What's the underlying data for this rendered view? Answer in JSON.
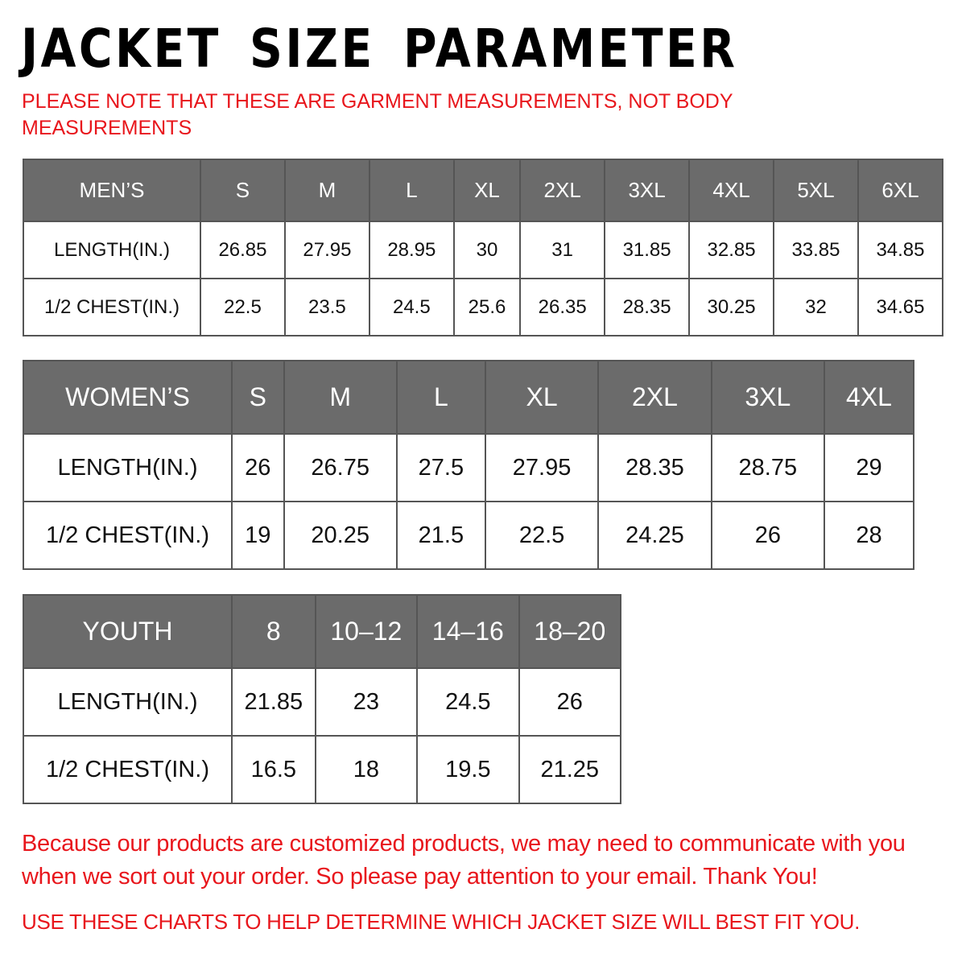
{
  "title": "JACKET SIZE PARAMETER",
  "note": "PLEASE NOTE THAT THESE ARE GARMENT MEASUREMENTS, NOT BODY MEASUREMENTS",
  "tables": [
    {
      "id": "men",
      "header": [
        "MEN’S",
        "S",
        "M",
        "L",
        "XL",
        "2XL",
        "3XL",
        "4XL",
        "5XL",
        "6XL"
      ],
      "rows": [
        [
          "LENGTH(IN.)",
          "26.85",
          "27.95",
          "28.95",
          "30",
          "31",
          "31.85",
          "32.85",
          "33.85",
          "34.85"
        ],
        [
          "1/2 CHEST(IN.)",
          "22.5",
          "23.5",
          "24.5",
          "25.6",
          "26.35",
          "28.35",
          "30.25",
          "32",
          "34.65"
        ]
      ]
    },
    {
      "id": "women",
      "header": [
        "WOMEN’S",
        "S",
        "M",
        "L",
        "XL",
        "2XL",
        "3XL",
        "4XL"
      ],
      "rows": [
        [
          "LENGTH(IN.)",
          "26",
          "26.75",
          "27.5",
          "27.95",
          "28.35",
          "28.75",
          "29"
        ],
        [
          "1/2 CHEST(IN.)",
          "19",
          "20.25",
          "21.5",
          "22.5",
          "24.25",
          "26",
          "28"
        ]
      ]
    },
    {
      "id": "youth",
      "header": [
        "YOUTH",
        "8",
        "10–12",
        "14–16",
        "18–20"
      ],
      "rows": [
        [
          "LENGTH(IN.)",
          "21.85",
          "23",
          "24.5",
          "26"
        ],
        [
          "1/2 CHEST(IN.)",
          "16.5",
          "18",
          "19.5",
          "21.25"
        ]
      ]
    }
  ],
  "footer": "Because our products are customized products, we may need to communicate with you when we sort out your order. So please pay attention to your email. Thank You!",
  "footer2": "USE THESE CHARTS TO HELP DETERMINE WHICH JACKET SIZE WILL BEST FIT YOU.",
  "colors": {
    "header_bg": "#6b6b6b",
    "accent_red": "#e8161c"
  }
}
